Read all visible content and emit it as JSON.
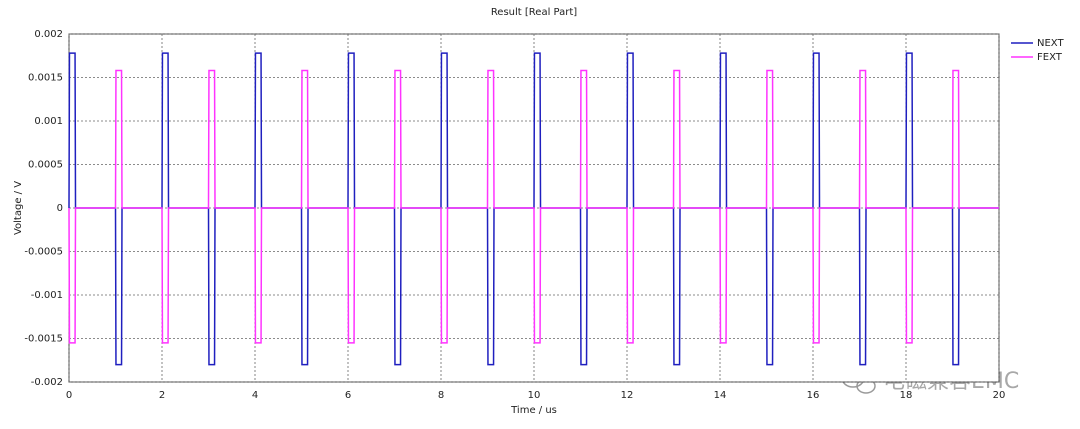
{
  "chart_data": {
    "type": "line",
    "title": "Result [Real Part]",
    "xlabel": "Time / us",
    "ylabel": "Voltage / V",
    "watermark": "电磁兼容EMC",
    "x": [
      0,
      0.01,
      0.13,
      0.14,
      1,
      1.01,
      1.13,
      1.14,
      2,
      2.01,
      2.13,
      2.14,
      3,
      3.01,
      3.13,
      3.14,
      4,
      4.01,
      4.13,
      4.14,
      5,
      5.01,
      5.13,
      5.14,
      6,
      6.01,
      6.13,
      6.14,
      7,
      7.01,
      7.13,
      7.14,
      8,
      8.01,
      8.13,
      8.14,
      9,
      9.01,
      9.13,
      9.14,
      10,
      10.01,
      10.13,
      10.14,
      11,
      11.01,
      11.13,
      11.14,
      12,
      12.01,
      12.13,
      12.14,
      13,
      13.01,
      13.13,
      13.14,
      14,
      14.01,
      14.13,
      14.14,
      15,
      15.01,
      15.13,
      15.14,
      16,
      16.01,
      16.13,
      16.14,
      17,
      17.01,
      17.13,
      17.14,
      18,
      18.01,
      18.13,
      18.14,
      19,
      19.01,
      19.13,
      19.14,
      20
    ],
    "series": [
      {
        "name": "NEXT",
        "color": "#1f1fbf",
        "values": [
          0,
          0.00178,
          0.00178,
          0,
          0,
          -0.0018,
          -0.0018,
          0,
          0,
          0.00178,
          0.00178,
          0,
          0,
          -0.0018,
          -0.0018,
          0,
          0,
          0.00178,
          0.00178,
          0,
          0,
          -0.0018,
          -0.0018,
          0,
          0,
          0.00178,
          0.00178,
          0,
          0,
          -0.0018,
          -0.0018,
          0,
          0,
          0.00178,
          0.00178,
          0,
          0,
          -0.0018,
          -0.0018,
          0,
          0,
          0.00178,
          0.00178,
          0,
          0,
          -0.0018,
          -0.0018,
          0,
          0,
          0.00178,
          0.00178,
          0,
          0,
          -0.0018,
          -0.0018,
          0,
          0,
          0.00178,
          0.00178,
          0,
          0,
          -0.0018,
          -0.0018,
          0,
          0,
          0.00178,
          0.00178,
          0,
          0,
          -0.0018,
          -0.0018,
          0,
          0,
          0.00178,
          0.00178,
          0,
          0,
          -0.0018,
          -0.0018,
          0,
          0
        ]
      },
      {
        "name": "FEXT",
        "color": "#ff33ff",
        "values": [
          0,
          -0.00155,
          -0.00155,
          0,
          0,
          0.00158,
          0.00158,
          0,
          0,
          -0.00155,
          -0.00155,
          0,
          0,
          0.00158,
          0.00158,
          0,
          0,
          -0.00155,
          -0.00155,
          0,
          0,
          0.00158,
          0.00158,
          0,
          0,
          -0.00155,
          -0.00155,
          0,
          0,
          0.00158,
          0.00158,
          0,
          0,
          -0.00155,
          -0.00155,
          0,
          0,
          0.00158,
          0.00158,
          0,
          0,
          -0.00155,
          -0.00155,
          0,
          0,
          0.00158,
          0.00158,
          0,
          0,
          -0.00155,
          -0.00155,
          0,
          0,
          0.00158,
          0.00158,
          0,
          0,
          -0.00155,
          -0.00155,
          0,
          0,
          0.00158,
          0.00158,
          0,
          0,
          -0.00155,
          -0.00155,
          0,
          0,
          0.00158,
          0.00158,
          0,
          0,
          -0.00155,
          -0.00155,
          0,
          0,
          0.00158,
          0.00158,
          0,
          0
        ]
      }
    ],
    "xlim": [
      0,
      20
    ],
    "xticks": [
      0,
      2,
      4,
      6,
      8,
      10,
      12,
      14,
      16,
      18,
      20
    ],
    "ylim": [
      -0.002,
      0.002
    ],
    "yticks": [
      0.002,
      0.0015,
      0.001,
      0.0005,
      0,
      -0.0005,
      -0.001,
      -0.0015,
      -0.002
    ],
    "grid": true,
    "legend": "right"
  }
}
